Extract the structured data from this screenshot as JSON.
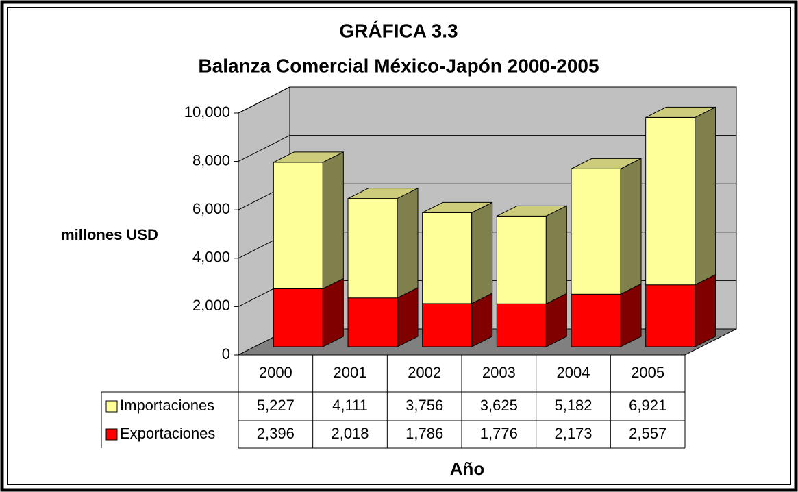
{
  "chart_data": {
    "type": "bar",
    "stacked": true,
    "three_d": true,
    "title": "GRÁFICA 3.3",
    "subtitle": "Balanza Comercial México-Japón 2000-2005",
    "y_label": "millones USD",
    "x_label": "Año",
    "categories": [
      "2000",
      "2001",
      "2002",
      "2003",
      "2004",
      "2005"
    ],
    "series": [
      {
        "name": "Importaciones",
        "color": "#ffff99",
        "values": [
          5227,
          4111,
          3756,
          3625,
          5182,
          6921
        ],
        "value_labels": [
          "5,227",
          "4,111",
          "3,756",
          "3,625",
          "5,182",
          "6,921"
        ]
      },
      {
        "name": "Exportaciones",
        "color": "#ff0000",
        "values": [
          2396,
          2018,
          1786,
          1776,
          2173,
          2557
        ],
        "value_labels": [
          "2,396",
          "2,018",
          "1,786",
          "1,776",
          "2,173",
          "2,557"
        ]
      }
    ],
    "ylim": [
      0,
      10000
    ],
    "yticks": [
      0,
      {
        "value": 2000,
        "label": "2,000"
      },
      {
        "value": 4000,
        "label": "4,000"
      },
      {
        "value": 6000,
        "label": "6,000"
      },
      {
        "value": 8000,
        "label": "8,000"
      },
      {
        "value": 10000,
        "label": "10,000"
      }
    ],
    "grid": true,
    "data_table": true
  }
}
